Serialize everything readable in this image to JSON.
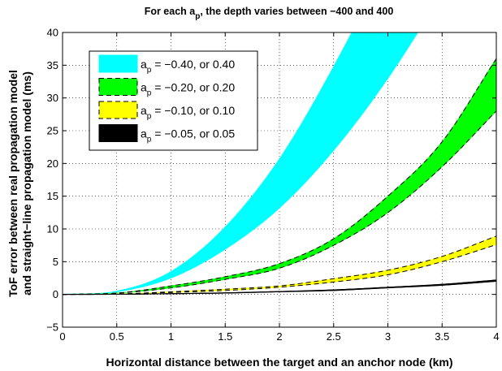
{
  "chart_data": {
    "type": "area",
    "title": {
      "prefix": "For each a",
      "sub": "p",
      "suffix": ", the depth varies between −400 and 400"
    },
    "xlabel": "Horizontal distance between the target and an anchor node (km)",
    "ylabel": [
      "ToF error between real propagation model",
      "and straight−line propagation model (ms)"
    ],
    "xlim": [
      0,
      4
    ],
    "ylim": [
      -5,
      40
    ],
    "xticks": [
      0,
      0.5,
      1,
      1.5,
      2,
      2.5,
      3,
      3.5,
      4
    ],
    "xtick_labels": [
      "0",
      "0.5",
      "1",
      "1.5",
      "2",
      "2.5",
      "3",
      "3.5",
      "4"
    ],
    "yticks": [
      -5,
      0,
      5,
      10,
      15,
      20,
      25,
      30,
      35,
      40
    ],
    "ytick_labels": [
      "−5",
      "0",
      "5",
      "10",
      "15",
      "20",
      "25",
      "30",
      "35",
      "40"
    ],
    "grid": true,
    "legend_position": "top-left",
    "x": [
      0,
      0.5,
      1,
      1.5,
      2,
      2.5,
      3,
      3.5,
      4
    ],
    "series": [
      {
        "legend_prefix": "a",
        "legend_sub": "p",
        "legend_suffix": " = −0.40, or 0.40",
        "color": "#00ffff",
        "edge": "none",
        "lower": [
          0,
          0.4,
          2.5,
          6.9,
          13.2,
          22.0,
          33.0,
          46.0,
          60.0
        ],
        "upper": [
          0,
          0.5,
          3.5,
          10.3,
          20.7,
          34.8,
          51.0,
          69.0,
          88.0
        ]
      },
      {
        "legend_prefix": "a",
        "legend_sub": "p",
        "legend_suffix": " = −0.20, or 0.20",
        "color": "#00ff00",
        "edge": "dashed",
        "lower": [
          0,
          0.2,
          1.0,
          2.3,
          4.0,
          7.5,
          12.5,
          19.5,
          28.0
        ],
        "upper": [
          0,
          0.2,
          1.3,
          2.7,
          4.7,
          8.5,
          15.0,
          23.3,
          36.0
        ]
      },
      {
        "legend_prefix": "a",
        "legend_sub": "p",
        "legend_suffix": " = −0.10, or 0.10",
        "color": "#ffff00",
        "edge": "dashed",
        "lower": [
          0,
          0.05,
          0.3,
          0.6,
          1.1,
          1.9,
          3.0,
          5.0,
          7.6
        ],
        "upper": [
          0,
          0.07,
          0.4,
          0.8,
          1.3,
          2.4,
          3.7,
          5.8,
          8.9
        ]
      },
      {
        "legend_prefix": "a",
        "legend_sub": "p",
        "legend_suffix": " = −0.05, or 0.05",
        "color": "#000000",
        "edge": "solid",
        "lower": [
          0,
          0.02,
          0.1,
          0.2,
          0.4,
          0.6,
          1.0,
          1.4,
          2.0
        ],
        "upper": [
          0,
          0.03,
          0.12,
          0.25,
          0.45,
          0.7,
          1.1,
          1.55,
          2.2
        ]
      }
    ]
  }
}
